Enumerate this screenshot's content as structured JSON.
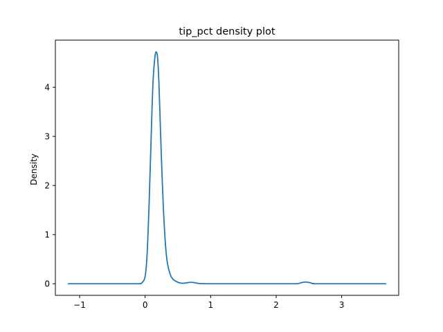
{
  "chart_data": {
    "type": "line",
    "title": "tip_pct density plot",
    "xlabel": "",
    "ylabel": "Density",
    "xlim": [
      -1.37,
      3.87
    ],
    "ylim": [
      -0.236,
      4.96
    ],
    "x_ticks": [
      -1,
      0,
      1,
      2,
      3
    ],
    "y_ticks": [
      0,
      1,
      2,
      3,
      4
    ],
    "x_tick_labels": [
      "−1",
      "0",
      "1",
      "2",
      "3"
    ],
    "y_tick_labels": [
      "0",
      "1",
      "2",
      "3",
      "4"
    ],
    "grid": false,
    "legend": "none",
    "series": [
      {
        "color": "#1f77b4",
        "x": [
          -1.17,
          -0.4,
          -0.1,
          -0.05,
          0.0,
          0.03,
          0.06,
          0.09,
          0.12,
          0.15,
          0.17,
          0.19,
          0.21,
          0.23,
          0.25,
          0.28,
          0.31,
          0.34,
          0.38,
          0.42,
          0.47,
          0.52,
          0.58,
          0.64,
          0.7,
          0.76,
          0.83,
          0.95,
          1.2,
          2.0,
          2.3,
          2.38,
          2.45,
          2.52,
          2.6,
          3.0,
          3.67
        ],
        "values": [
          0.0,
          0.0,
          0.0,
          0.02,
          0.15,
          0.6,
          1.6,
          2.9,
          4.1,
          4.62,
          4.72,
          4.6,
          4.1,
          3.3,
          2.5,
          1.5,
          0.8,
          0.42,
          0.2,
          0.1,
          0.05,
          0.02,
          0.01,
          0.02,
          0.03,
          0.02,
          0.005,
          0.0,
          0.0,
          0.0,
          0.0,
          0.02,
          0.035,
          0.02,
          0.0,
          0.0,
          0.0
        ]
      }
    ]
  }
}
